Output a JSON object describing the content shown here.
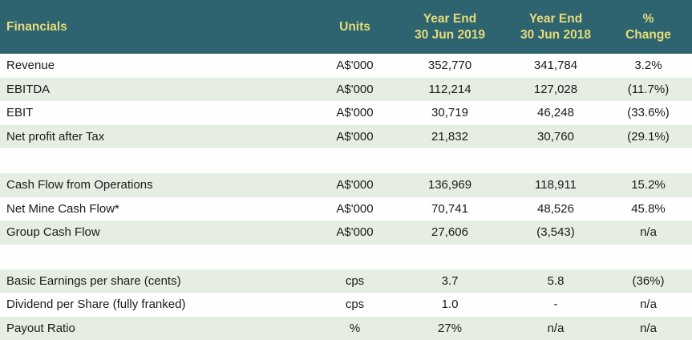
{
  "header": {
    "label": "Financials",
    "units": "Units",
    "col_2019_line1": "Year End",
    "col_2019_line2": "30 Jun 2019",
    "col_2018_line1": "Year End",
    "col_2018_line2": "30 Jun 2018",
    "change_line1": "%",
    "change_line2": "Change"
  },
  "colors": {
    "header_bg": "#2d6470",
    "header_text": "#e6dc7a",
    "row_shade": "#e6eee3"
  },
  "rows": [
    {
      "label": "Revenue",
      "units": "A$'000",
      "y2019": "352,770",
      "y2018": "341,784",
      "change": "3.2%"
    },
    {
      "label": "EBITDA",
      "units": "A$'000",
      "y2019": "112,214",
      "y2018": "127,028",
      "change": "(11.7%)"
    },
    {
      "label": "EBIT",
      "units": "A$'000",
      "y2019": "30,719",
      "y2018": "46,248",
      "change": "(33.6%)"
    },
    {
      "label": "Net profit after Tax",
      "units": "A$'000",
      "y2019": "21,832",
      "y2018": "30,760",
      "change": "(29.1%)"
    },
    {
      "label": "Cash Flow from Operations",
      "units": "A$'000",
      "y2019": "136,969",
      "y2018": "118,911",
      "change": "15.2%"
    },
    {
      "label": "Net Mine Cash Flow*",
      "units": "A$'000",
      "y2019": "70,741",
      "y2018": "48,526",
      "change": "45.8%"
    },
    {
      "label": "Group Cash Flow",
      "units": "A$'000",
      "y2019": "27,606",
      "y2018": "(3,543)",
      "change": "n/a"
    },
    {
      "label": "Basic Earnings per share (cents)",
      "units": "cps",
      "y2019": "3.7",
      "y2018": "5.8",
      "change": "(36%)"
    },
    {
      "label": "Dividend per Share (fully franked)",
      "units": "cps",
      "y2019": "1.0",
      "y2018": "-",
      "change": "n/a"
    },
    {
      "label": "Payout Ratio",
      "units": "%",
      "y2019": "27%",
      "y2018": "n/a",
      "change": "n/a"
    }
  ]
}
